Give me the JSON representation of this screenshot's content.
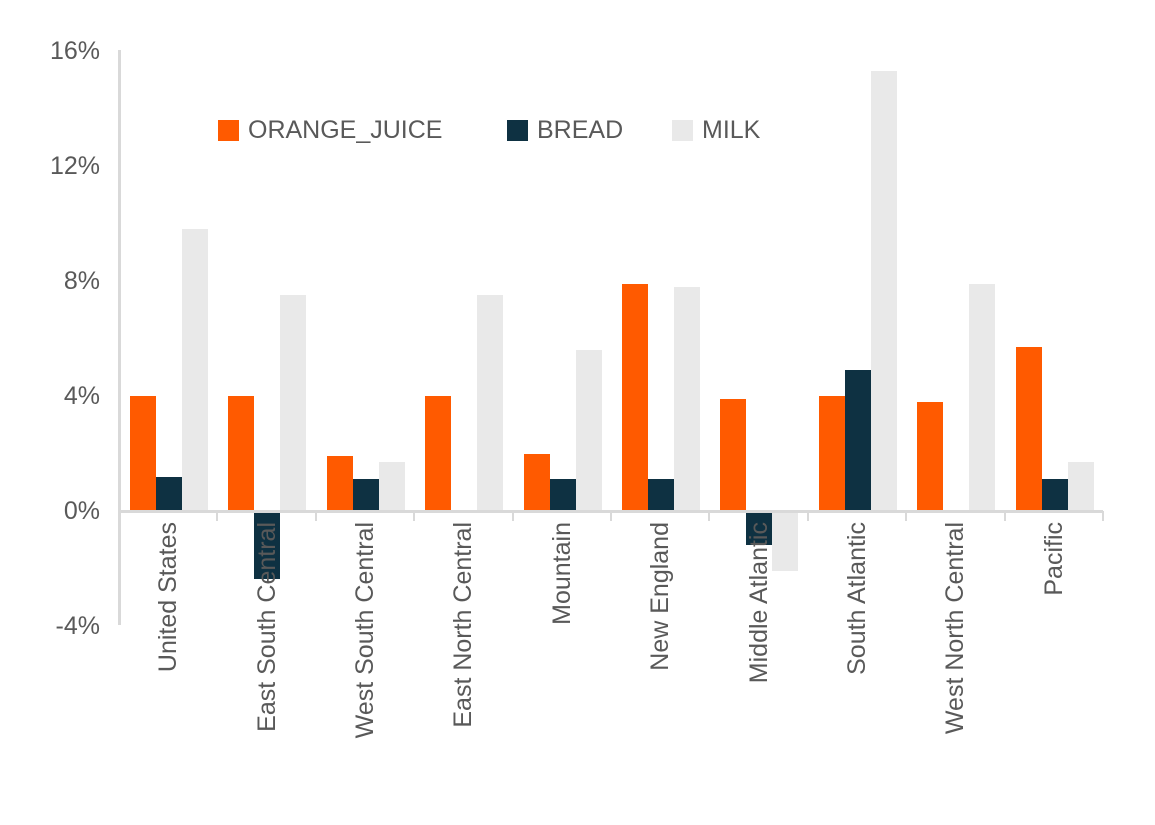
{
  "chart_data": {
    "type": "bar",
    "title": "",
    "xlabel": "",
    "ylabel": "",
    "categories": [
      "United States",
      "East South Central",
      "West South Central",
      "East North Central",
      "Mountain",
      "New England",
      "Middle Atlantic",
      "South Atlantic",
      "West North Central",
      "Pacific"
    ],
    "series": [
      {
        "name": "ORANGE_JUICE",
        "color": "#FF5A00",
        "values": [
          4.0,
          4.0,
          1.9,
          4.0,
          2.0,
          7.9,
          3.9,
          4.0,
          3.8,
          5.7
        ]
      },
      {
        "name": "BREAD",
        "color": "#0E3142",
        "values": [
          1.2,
          -2.3,
          1.1,
          0,
          1.1,
          1.1,
          -1.1,
          4.9,
          0,
          1.1
        ]
      },
      {
        "name": "MILK",
        "color": "#E9E9E9",
        "values": [
          9.8,
          7.5,
          1.7,
          7.5,
          5.6,
          7.8,
          -2.0,
          15.3,
          7.9,
          1.7
        ]
      }
    ],
    "y_ticks": [
      {
        "label": "16%",
        "value": 16
      },
      {
        "label": "12%",
        "value": 12
      },
      {
        "label": "8%",
        "value": 8
      },
      {
        "label": "4%",
        "value": 4
      },
      {
        "label": "0%",
        "value": 0
      },
      {
        "label": "-4%",
        "value": -4
      }
    ],
    "ylim": [
      -4,
      16
    ],
    "grid": false,
    "legend_position": "top-center",
    "colors": {
      "axis": "#d9d9d9",
      "text": "#595959",
      "background": "#ffffff"
    }
  }
}
